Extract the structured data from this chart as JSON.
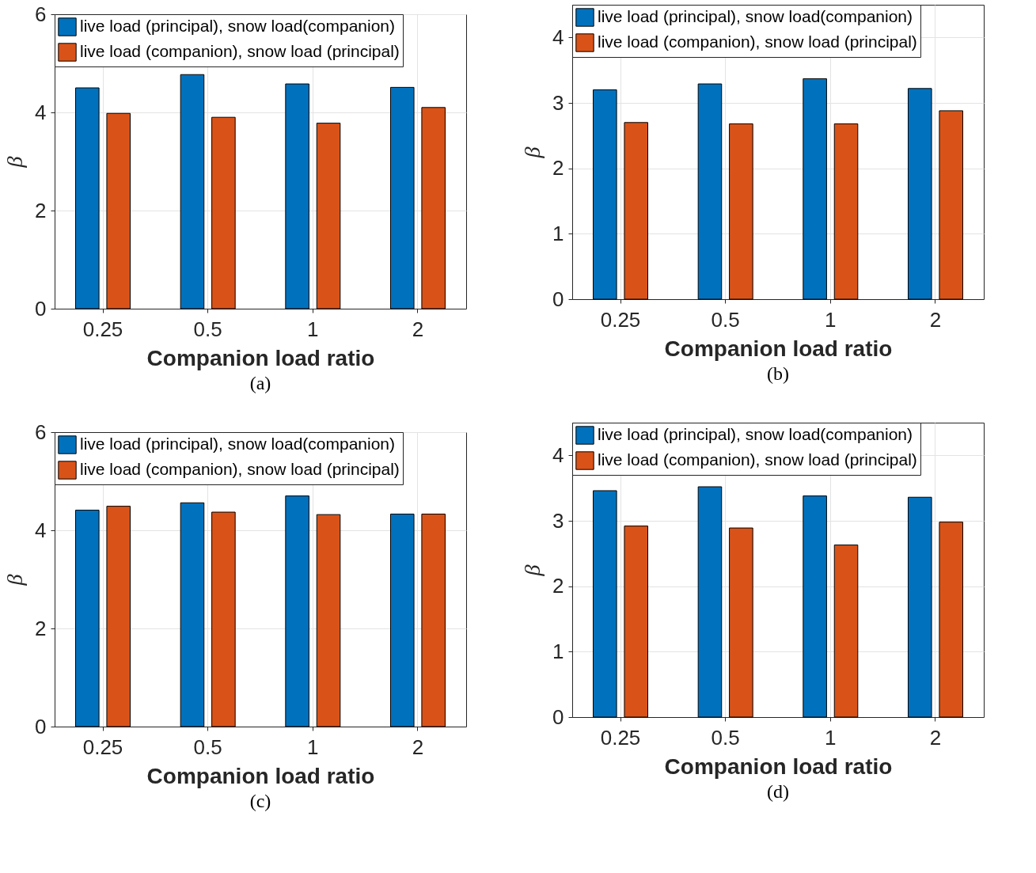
{
  "chart_data": [
    {
      "type": "bar",
      "xlabel": "Companion load ratio",
      "ylabel": "β",
      "categories": [
        "0.25",
        "0.5",
        "1",
        "2"
      ],
      "ylim": [
        0,
        6
      ],
      "yticks": [
        0,
        2,
        4,
        6
      ],
      "grid": true,
      "legend": "top",
      "annotations": [
        "(a)"
      ],
      "series": [
        {
          "name": "live load (principal), snow load(companion)",
          "color": "#0072bd",
          "values": [
            4.5,
            4.77,
            4.58,
            4.51
          ]
        },
        {
          "name": "live load (companion), snow load (principal)",
          "color": "#d95319",
          "values": [
            3.98,
            3.9,
            3.78,
            4.1
          ]
        }
      ]
    },
    {
      "type": "bar",
      "xlabel": "Companion load ratio",
      "ylabel": "β",
      "categories": [
        "0.25",
        "0.5",
        "1",
        "2"
      ],
      "ylim": [
        0,
        4.5
      ],
      "yticks": [
        0,
        1,
        2,
        3,
        4
      ],
      "grid": true,
      "legend": "top",
      "annotations": [
        "(b)"
      ],
      "series": [
        {
          "name": "live load (principal), snow load(companion)",
          "color": "#0072bd",
          "values": [
            3.2,
            3.29,
            3.37,
            3.22
          ]
        },
        {
          "name": "live load (companion), snow load (principal)",
          "color": "#d95319",
          "values": [
            2.7,
            2.68,
            2.68,
            2.88
          ]
        }
      ]
    },
    {
      "type": "bar",
      "xlabel": "Companion load ratio",
      "ylabel": "β",
      "categories": [
        "0.25",
        "0.5",
        "1",
        "2"
      ],
      "ylim": [
        0,
        6
      ],
      "yticks": [
        0,
        2,
        4,
        6
      ],
      "grid": true,
      "legend": "top",
      "annotations": [
        "(c)"
      ],
      "series": [
        {
          "name": "live load (principal), snow load(companion)",
          "color": "#0072bd",
          "values": [
            4.41,
            4.56,
            4.7,
            4.33
          ]
        },
        {
          "name": "live load (companion), snow load (principal)",
          "color": "#d95319",
          "values": [
            4.49,
            4.37,
            4.32,
            4.33
          ]
        }
      ]
    },
    {
      "type": "bar",
      "xlabel": "Companion load ratio",
      "ylabel": "β",
      "categories": [
        "0.25",
        "0.5",
        "1",
        "2"
      ],
      "ylim": [
        0,
        4.5
      ],
      "yticks": [
        0,
        1,
        2,
        3,
        4
      ],
      "grid": true,
      "legend": "top",
      "annotations": [
        "(d)"
      ],
      "series": [
        {
          "name": "live load (principal), snow load(companion)",
          "color": "#0072bd",
          "values": [
            3.46,
            3.52,
            3.38,
            3.36
          ]
        },
        {
          "name": "live load (companion), snow load (principal)",
          "color": "#d95319",
          "values": [
            2.92,
            2.89,
            2.63,
            2.98
          ]
        }
      ]
    }
  ]
}
